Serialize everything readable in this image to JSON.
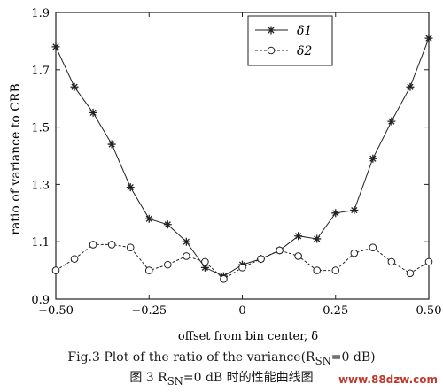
{
  "chart_data": {
    "type": "line",
    "xlabel": "offset from bin center, δ",
    "ylabel": "ratio of variance to CRB",
    "xlim": [
      -0.5,
      0.5
    ],
    "ylim": [
      0.9,
      1.9
    ],
    "x_ticks": [
      "−0.50",
      "−0.25",
      "0",
      "0.25",
      "0.50"
    ],
    "x_tick_values": [
      -0.5,
      -0.25,
      0,
      0.25,
      0.5
    ],
    "y_ticks": [
      "0.9",
      "1.1",
      "1.3",
      "1.5",
      "1.7",
      "1.9"
    ],
    "y_tick_values": [
      0.9,
      1.1,
      1.3,
      1.5,
      1.7,
      1.9
    ],
    "grid": false,
    "legend_position": "top-right",
    "series": [
      {
        "name": "δ1",
        "marker": "star",
        "x": [
          -0.5,
          -0.45,
          -0.4,
          -0.35,
          -0.3,
          -0.25,
          -0.2,
          -0.15,
          -0.1,
          -0.05,
          0.0,
          0.05,
          0.1,
          0.15,
          0.2,
          0.25,
          0.3,
          0.35,
          0.4,
          0.45,
          0.5
        ],
        "values": [
          1.78,
          1.64,
          1.55,
          1.44,
          1.29,
          1.18,
          1.16,
          1.1,
          1.01,
          0.98,
          1.02,
          1.04,
          1.07,
          1.12,
          1.11,
          1.2,
          1.21,
          1.39,
          1.52,
          1.64,
          1.81
        ]
      },
      {
        "name": "δ2",
        "marker": "circle",
        "x": [
          -0.5,
          -0.45,
          -0.4,
          -0.35,
          -0.3,
          -0.25,
          -0.2,
          -0.15,
          -0.1,
          -0.05,
          0.0,
          0.05,
          0.1,
          0.15,
          0.2,
          0.25,
          0.3,
          0.35,
          0.4,
          0.45,
          0.5
        ],
        "values": [
          1.0,
          1.04,
          1.09,
          1.09,
          1.08,
          1.0,
          1.02,
          1.05,
          1.03,
          0.97,
          1.01,
          1.04,
          1.07,
          1.05,
          1.0,
          1.0,
          1.06,
          1.08,
          1.03,
          0.99,
          1.03
        ]
      }
    ]
  },
  "caption": {
    "english": "Fig.3 Plot of the ratio of the variance(R",
    "english_sub": "SN",
    "english_end": "=0 dB)",
    "chinese_prefix": "图 3 R",
    "chinese_sub": "SN",
    "chinese_end": "=0 dB 时的性能曲线图"
  },
  "watermark": "www.88dzw.com"
}
